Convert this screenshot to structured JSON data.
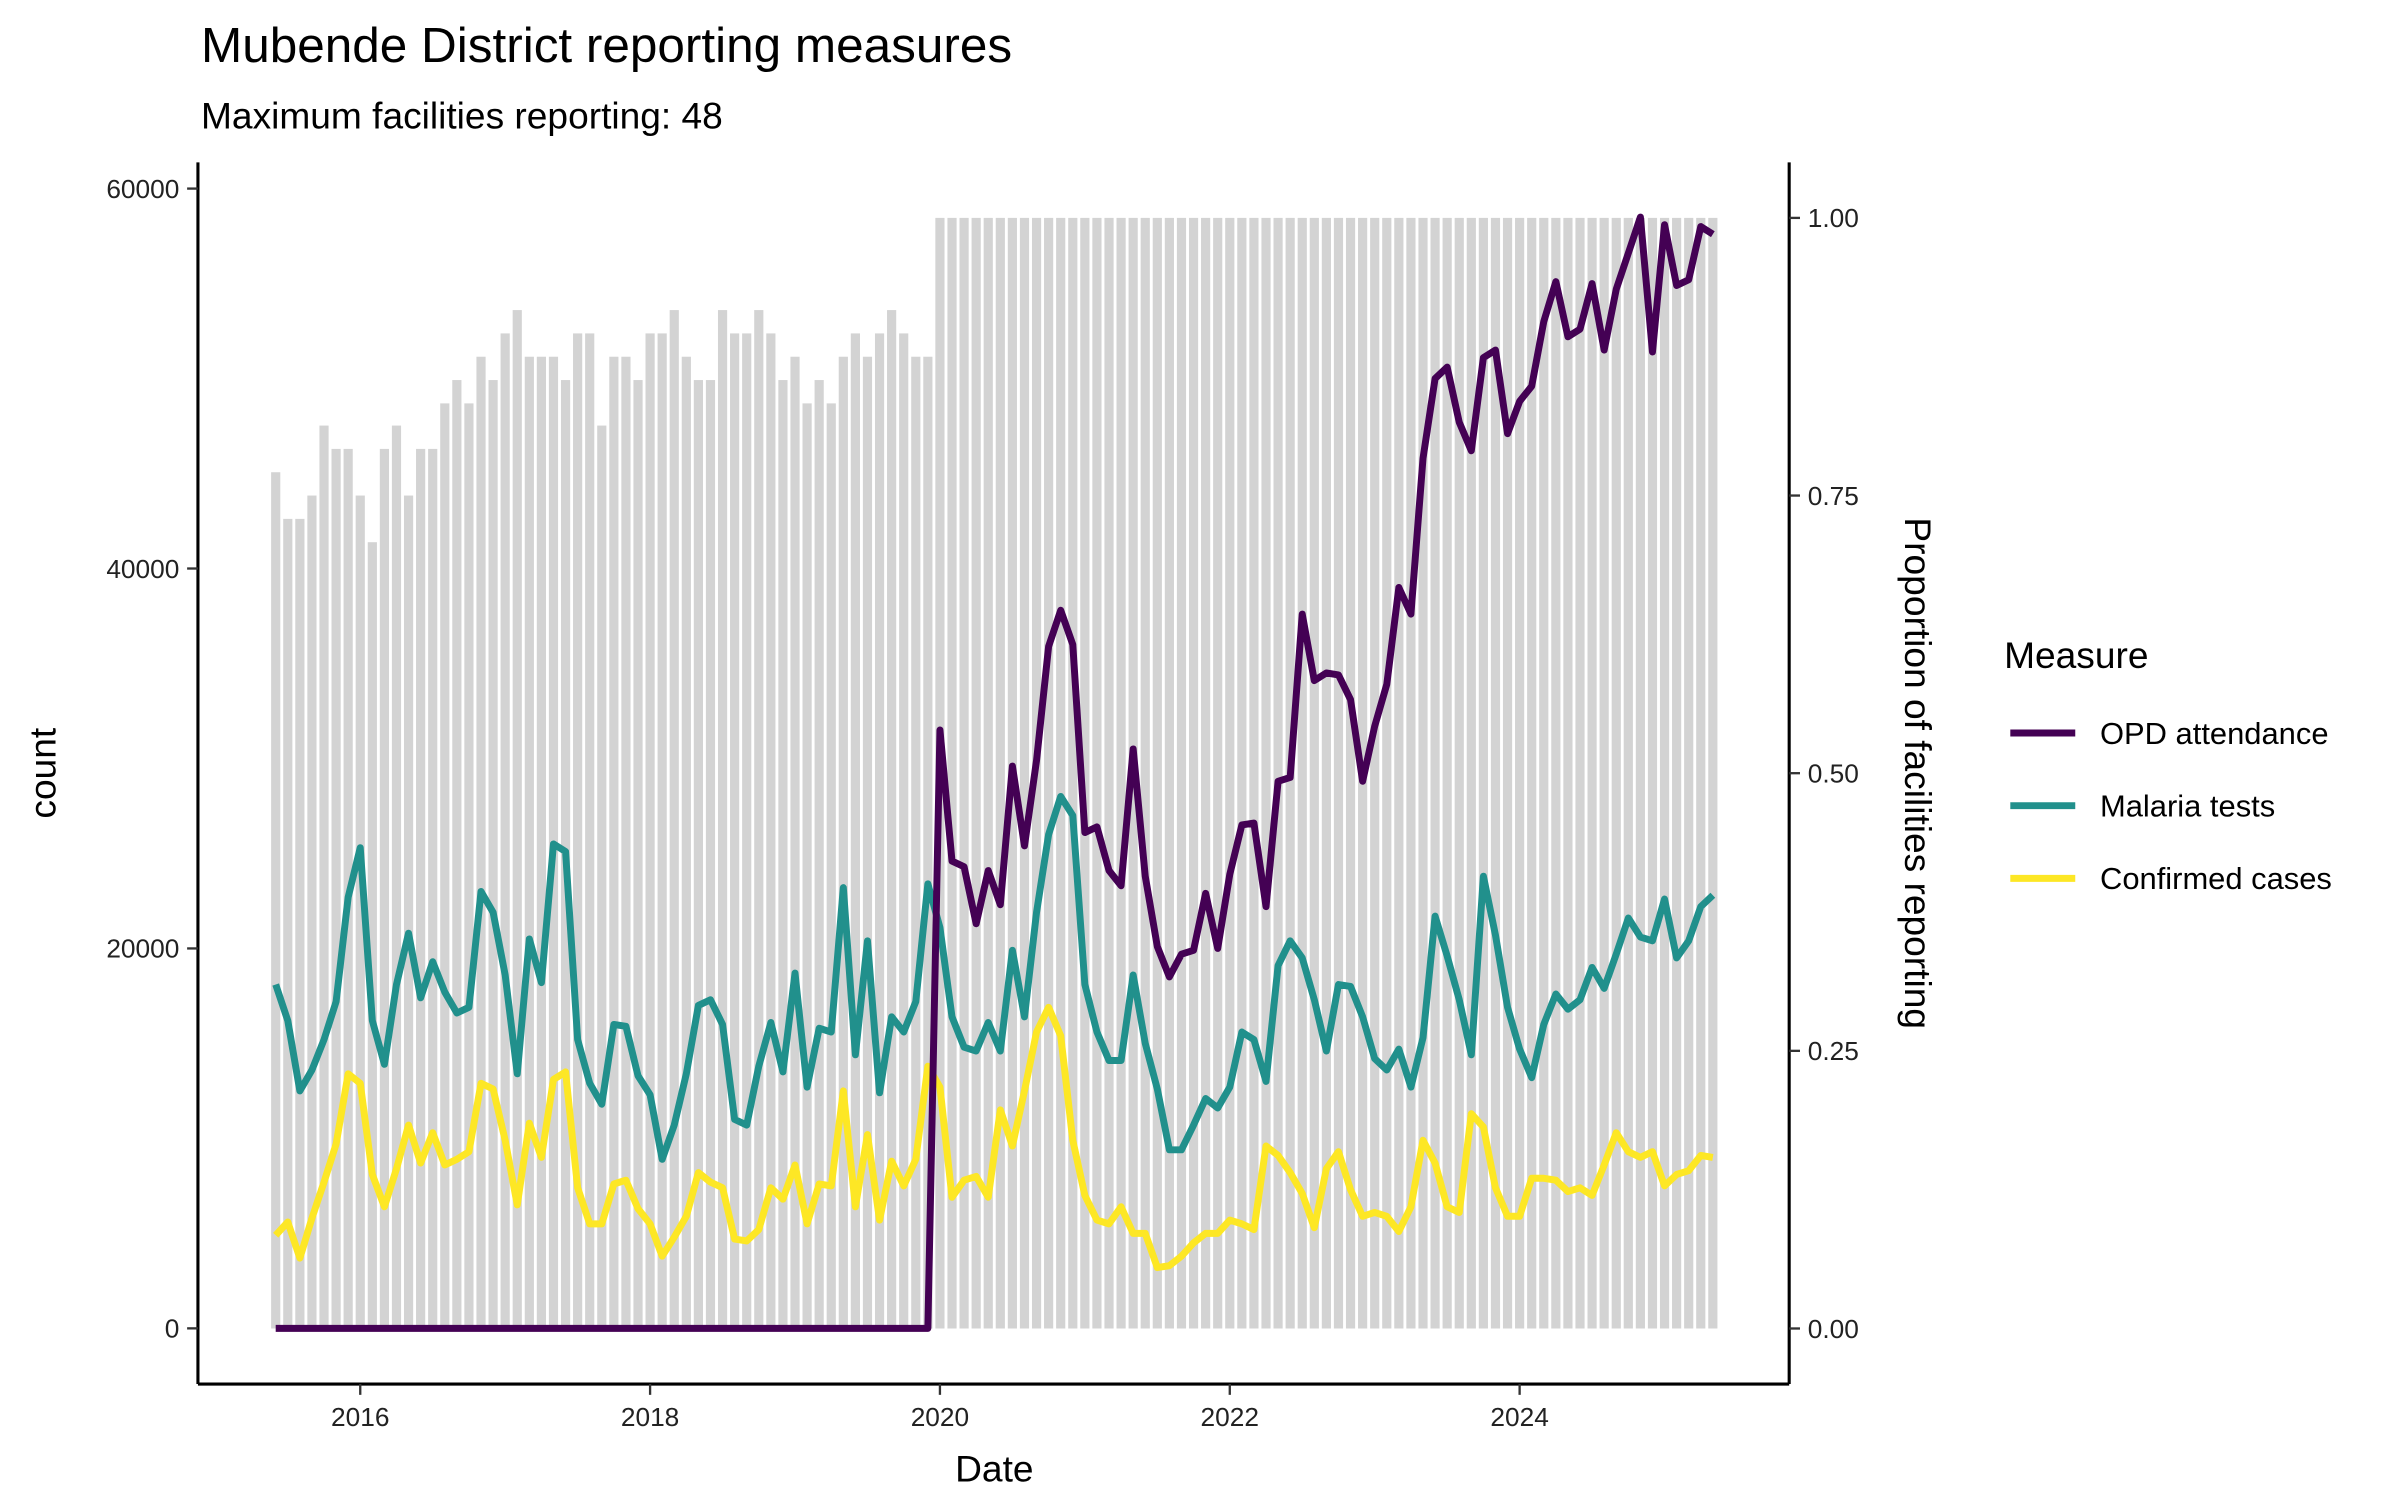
{
  "chart_data": {
    "type": "line",
    "title": "Mubende District reporting measures",
    "subtitle": "Maximum facilities reporting: 48",
    "x_label": "Date",
    "y_label": "count",
    "y2_label": "Proportion of facilities reporting",
    "legend_title": "Measure",
    "legend_position": "right",
    "x": [
      "2015-06",
      "2015-07",
      "2015-08",
      "2015-09",
      "2015-10",
      "2015-11",
      "2015-12",
      "2016-01",
      "2016-02",
      "2016-03",
      "2016-04",
      "2016-05",
      "2016-06",
      "2016-07",
      "2016-08",
      "2016-09",
      "2016-10",
      "2016-11",
      "2016-12",
      "2017-01",
      "2017-02",
      "2017-03",
      "2017-04",
      "2017-05",
      "2017-06",
      "2017-07",
      "2017-08",
      "2017-09",
      "2017-10",
      "2017-11",
      "2017-12",
      "2018-01",
      "2018-02",
      "2018-03",
      "2018-04",
      "2018-05",
      "2018-06",
      "2018-07",
      "2018-08",
      "2018-09",
      "2018-10",
      "2018-11",
      "2018-12",
      "2019-01",
      "2019-02",
      "2019-03",
      "2019-04",
      "2019-05",
      "2019-06",
      "2019-07",
      "2019-08",
      "2019-09",
      "2019-10",
      "2019-11",
      "2019-12",
      "2020-01",
      "2020-02",
      "2020-03",
      "2020-04",
      "2020-05",
      "2020-06",
      "2020-07",
      "2020-08",
      "2020-09",
      "2020-10",
      "2020-11",
      "2020-12",
      "2021-01",
      "2021-02",
      "2021-03",
      "2021-04",
      "2021-05",
      "2021-06",
      "2021-07",
      "2021-08",
      "2021-09",
      "2021-10",
      "2021-11",
      "2021-12",
      "2022-01",
      "2022-02",
      "2022-03",
      "2022-04",
      "2022-05",
      "2022-06",
      "2022-07",
      "2022-08",
      "2022-09",
      "2022-10",
      "2022-11",
      "2022-12",
      "2023-01",
      "2023-02",
      "2023-03",
      "2023-04",
      "2023-05",
      "2023-06",
      "2023-07",
      "2023-08",
      "2023-09",
      "2023-10",
      "2023-11",
      "2023-12",
      "2024-01",
      "2024-02",
      "2024-03",
      "2024-04",
      "2024-05",
      "2024-06",
      "2024-07",
      "2024-08",
      "2024-09",
      "2024-10",
      "2024-11",
      "2024-12",
      "2025-01",
      "2025-02",
      "2025-03",
      "2025-04",
      "2025-05"
    ],
    "bars": {
      "color": "#d3d3d3",
      "axis": "y2",
      "values": [
        0.771,
        0.729,
        0.729,
        0.75,
        0.813,
        0.792,
        0.792,
        0.75,
        0.708,
        0.792,
        0.813,
        0.75,
        0.792,
        0.792,
        0.833,
        0.854,
        0.833,
        0.875,
        0.854,
        0.896,
        0.917,
        0.875,
        0.875,
        0.875,
        0.854,
        0.896,
        0.896,
        0.813,
        0.875,
        0.875,
        0.854,
        0.896,
        0.896,
        0.917,
        0.875,
        0.854,
        0.854,
        0.917,
        0.896,
        0.896,
        0.917,
        0.896,
        0.854,
        0.875,
        0.833,
        0.854,
        0.833,
        0.875,
        0.896,
        0.875,
        0.896,
        0.917,
        0.896,
        0.875,
        0.875,
        1,
        1,
        1,
        1,
        1,
        1,
        1,
        1,
        1,
        1,
        1,
        1,
        1,
        1,
        1,
        1,
        1,
        1,
        1,
        1,
        1,
        1,
        1,
        1,
        1,
        1,
        1,
        1,
        1,
        1,
        1,
        1,
        1,
        1,
        1,
        1,
        1,
        1,
        1,
        1,
        1,
        1,
        1,
        1,
        1,
        1,
        1,
        1,
        1,
        1,
        1,
        1,
        1,
        1,
        1,
        1,
        1,
        1,
        1,
        1,
        1,
        1,
        1,
        1,
        1
      ]
    },
    "series": [
      {
        "name": "OPD attendance",
        "color": "#440154",
        "values": [
          0,
          0,
          0,
          0,
          0,
          0,
          0,
          0,
          0,
          0,
          0,
          0,
          0,
          0,
          0,
          0,
          0,
          0,
          0,
          0,
          0,
          0,
          0,
          0,
          0,
          0,
          0,
          0,
          0,
          0,
          0,
          0,
          0,
          0,
          0,
          0,
          0,
          0,
          0,
          0,
          0,
          0,
          0,
          0,
          0,
          0,
          0,
          0,
          0,
          0,
          0,
          0,
          0,
          0,
          0,
          31500,
          24600,
          24300,
          21300,
          24100,
          22300,
          29600,
          25400,
          29900,
          35900,
          37800,
          36000,
          26100,
          26400,
          24100,
          23300,
          30500,
          23800,
          20100,
          18500,
          19700,
          19900,
          22900,
          20000,
          23900,
          26500,
          26600,
          22200,
          28800,
          29000,
          37600,
          34100,
          34500,
          34400,
          33100,
          28800,
          31700,
          33900,
          39000,
          37600,
          45800,
          50000,
          50600,
          47700,
          46200,
          51100,
          51500,
          47100,
          48800,
          49600,
          53000,
          55100,
          52200,
          52600,
          55000,
          51500,
          54700,
          56600,
          58500,
          51400,
          58100,
          54900,
          55200,
          58000,
          57600
        ]
      },
      {
        "name": "Malaria tests",
        "color": "#21908c",
        "values": [
          18100,
          16200,
          12500,
          13600,
          15200,
          17200,
          22700,
          25300,
          16200,
          13900,
          18100,
          20800,
          17400,
          19300,
          17700,
          16600,
          16900,
          23000,
          21900,
          18600,
          13400,
          20500,
          18200,
          25500,
          25100,
          15200,
          12900,
          11800,
          16000,
          15900,
          13300,
          12300,
          8900,
          10700,
          13400,
          17000,
          17300,
          16000,
          11000,
          10700,
          13800,
          16100,
          13500,
          18700,
          12700,
          15800,
          15600,
          23200,
          14400,
          20400,
          12400,
          16400,
          15600,
          17200,
          23400,
          21100,
          16400,
          14800,
          14600,
          16100,
          14600,
          19900,
          16400,
          21900,
          26000,
          28000,
          27000,
          18100,
          15600,
          14100,
          14100,
          18600,
          15000,
          12600,
          9400,
          9400,
          10700,
          12100,
          11600,
          12700,
          15600,
          15200,
          13000,
          19100,
          20400,
          19500,
          17300,
          14600,
          18100,
          18000,
          16400,
          14200,
          13600,
          14700,
          12700,
          15300,
          21700,
          19600,
          17300,
          14400,
          23800,
          20700,
          16900,
          14700,
          13200,
          16000,
          17600,
          16800,
          17300,
          19000,
          17900,
          19700,
          21600,
          20600,
          20400,
          22600,
          19500,
          20400,
          22200,
          22800
        ]
      },
      {
        "name": "Confirmed cases",
        "color": "#fde725",
        "values": [
          4900,
          5600,
          3700,
          5800,
          7700,
          9700,
          13400,
          12900,
          8100,
          6400,
          8400,
          10700,
          8700,
          10300,
          8600,
          8900,
          9300,
          12900,
          12600,
          9900,
          6500,
          10800,
          9000,
          13100,
          13500,
          7400,
          5500,
          5500,
          7600,
          7800,
          6300,
          5500,
          3800,
          4800,
          5900,
          8200,
          7700,
          7400,
          4700,
          4600,
          5200,
          7400,
          6800,
          8600,
          5500,
          7600,
          7500,
          12500,
          6400,
          10200,
          5700,
          8800,
          7500,
          8900,
          13800,
          12700,
          6900,
          7800,
          8000,
          6900,
          11500,
          9600,
          12500,
          15600,
          16900,
          15400,
          9900,
          7000,
          5700,
          5500,
          6400,
          5000,
          5000,
          3200,
          3300,
          3800,
          4500,
          5000,
          5000,
          5700,
          5500,
          5200,
          9600,
          9100,
          8200,
          7100,
          5300,
          8400,
          9300,
          7300,
          5900,
          6100,
          5900,
          5100,
          6400,
          9900,
          8700,
          6400,
          6100,
          11300,
          10600,
          7400,
          5900,
          5900,
          7900,
          7900,
          7800,
          7200,
          7400,
          7000,
          8600,
          10300,
          9300,
          9000,
          9300,
          7500,
          8100,
          8300,
          9100,
          9000
        ]
      }
    ],
    "xlim": [
      2014.88,
      2025.86
    ],
    "xticks": [
      2016,
      2018,
      2020,
      2022,
      2024
    ],
    "ylim": [
      -2930,
      61380
    ],
    "yticks": [
      0,
      20000,
      40000,
      60000
    ],
    "y2lim": [
      -0.05,
      1.05
    ],
    "y2ticks": [
      {
        "value": 0,
        "label": "0.00"
      },
      {
        "value": 0.25,
        "label": "0.25"
      },
      {
        "value": 0.5,
        "label": "0.50"
      },
      {
        "value": 0.75,
        "label": "0.75"
      },
      {
        "value": 1,
        "label": "1.00"
      }
    ],
    "grid": false
  }
}
